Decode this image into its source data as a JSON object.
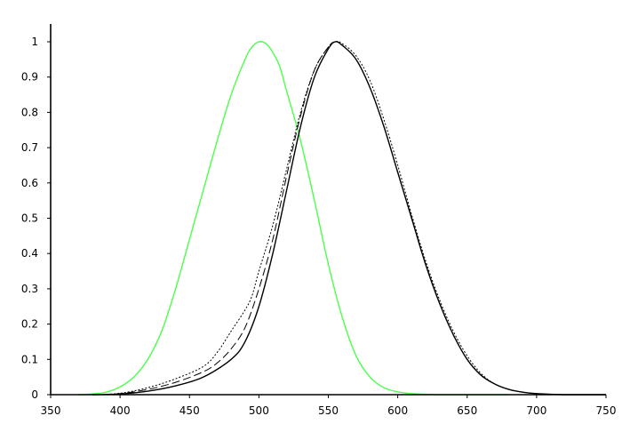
{
  "chart_data": {
    "type": "line",
    "title": "",
    "xlabel": "",
    "ylabel": "",
    "xlim": [
      350,
      750
    ],
    "ylim": [
      0,
      1
    ],
    "grid": false,
    "legend": "none",
    "x_ticks": [
      "350",
      "400",
      "450",
      "500",
      "550",
      "600",
      "650",
      "700",
      "750"
    ],
    "y_ticks": [
      "0",
      "0.1",
      "0.2",
      "0.3",
      "0.4",
      "0.5",
      "0.6",
      "0.7",
      "0.8",
      "0.9",
      "1"
    ],
    "series": [
      {
        "color": "#4cff4c",
        "style": "solid",
        "x": [
          370,
          380,
          390,
          400,
          410,
          420,
          430,
          440,
          450,
          460,
          470,
          480,
          490,
          495,
          500,
          505,
          510,
          515,
          520,
          530,
          540,
          550,
          560,
          570,
          580,
          590,
          600,
          610,
          620,
          630,
          640,
          650,
          660,
          670,
          680
        ],
        "y": [
          0.0,
          0.002,
          0.007,
          0.022,
          0.05,
          0.1,
          0.18,
          0.3,
          0.44,
          0.58,
          0.72,
          0.85,
          0.95,
          0.985,
          1.0,
          0.995,
          0.97,
          0.93,
          0.86,
          0.72,
          0.55,
          0.37,
          0.22,
          0.11,
          0.05,
          0.02,
          0.008,
          0.003,
          0.001,
          0.0,
          0.0,
          0.0,
          0.0,
          0.0,
          0.0
        ]
      },
      {
        "color": "#000000",
        "style": "solid",
        "x": [
          380,
          400,
          420,
          440,
          460,
          480,
          490,
          500,
          510,
          520,
          530,
          540,
          550,
          555,
          560,
          570,
          580,
          590,
          600,
          610,
          620,
          630,
          640,
          650,
          660,
          670,
          680,
          690,
          700,
          720,
          750
        ],
        "y": [
          0.0,
          0.002,
          0.01,
          0.025,
          0.05,
          0.1,
          0.15,
          0.25,
          0.4,
          0.58,
          0.76,
          0.9,
          0.98,
          1.0,
          0.99,
          0.95,
          0.87,
          0.76,
          0.63,
          0.5,
          0.37,
          0.26,
          0.17,
          0.1,
          0.055,
          0.03,
          0.015,
          0.007,
          0.003,
          0.0,
          0.0
        ]
      },
      {
        "color": "#000000",
        "style": "dashed",
        "x": [
          380,
          400,
          420,
          440,
          460,
          470,
          480,
          490,
          500,
          510,
          520,
          530,
          540,
          550,
          555,
          560,
          570,
          580,
          590,
          600,
          610,
          620,
          630,
          640,
          650,
          660,
          670,
          680,
          690,
          700,
          720,
          750
        ],
        "y": [
          0.0,
          0.003,
          0.015,
          0.035,
          0.065,
          0.09,
          0.13,
          0.19,
          0.3,
          0.44,
          0.62,
          0.79,
          0.92,
          0.985,
          1.0,
          0.99,
          0.95,
          0.87,
          0.76,
          0.63,
          0.5,
          0.37,
          0.26,
          0.17,
          0.1,
          0.055,
          0.03,
          0.015,
          0.007,
          0.003,
          0.0,
          0.0
        ]
      },
      {
        "color": "#000000",
        "style": "dotted",
        "x": [
          380,
          400,
          420,
          440,
          460,
          470,
          480,
          490,
          495,
          500,
          510,
          520,
          530,
          540,
          550,
          555,
          560,
          570,
          580,
          590,
          600,
          610,
          620,
          630,
          640,
          650,
          660,
          670,
          680,
          690,
          700,
          720,
          750
        ],
        "y": [
          0.0,
          0.004,
          0.02,
          0.045,
          0.08,
          0.12,
          0.18,
          0.24,
          0.28,
          0.35,
          0.48,
          0.64,
          0.8,
          0.92,
          0.985,
          1.0,
          0.995,
          0.96,
          0.89,
          0.78,
          0.65,
          0.51,
          0.38,
          0.27,
          0.18,
          0.11,
          0.06,
          0.03,
          0.015,
          0.007,
          0.003,
          0.0,
          0.0
        ]
      }
    ]
  }
}
